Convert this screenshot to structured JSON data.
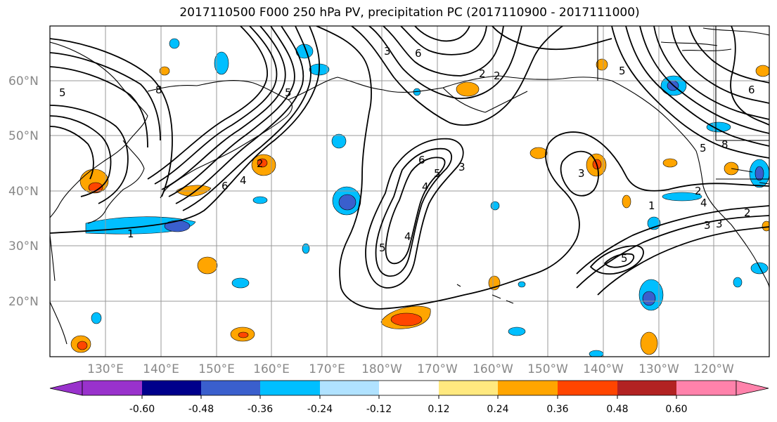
{
  "title": "2017110500 F000 250 hPa PV, precipitation PC (2017110900 - 2017111000)",
  "lat_labels": [
    "60°N",
    "50°N",
    "40°N",
    "30°N",
    "20°N"
  ],
  "lon_labels": [
    "130°E",
    "140°E",
    "150°E",
    "160°E",
    "170°E",
    "180°W",
    "170°W",
    "160°W",
    "150°W",
    "140°W",
    "130°W",
    "120°W"
  ],
  "colorbar": {
    "colors": [
      "#9932cc",
      "#00008b",
      "#3a5fcd",
      "#00bfff",
      "#b0e2ff",
      "#ffffff",
      "#ffe97f",
      "#ffa500",
      "#ff4500",
      "#b22222",
      "#ff82ab"
    ],
    "tick_labels": [
      "-0.60",
      "-0.48",
      "-0.36",
      "-0.24",
      "-0.12",
      "0.12",
      "0.24",
      "0.36",
      "0.48",
      "0.60"
    ]
  },
  "contour_labels": [
    "5",
    "5",
    "8",
    "3",
    "2",
    "1",
    "6",
    "4",
    "2",
    "6",
    "2",
    "3",
    "6",
    "5",
    "4",
    "5",
    "4",
    "3",
    "2",
    "3",
    "1",
    "2",
    "4",
    "3",
    "5",
    "5",
    "8",
    "5",
    "6"
  ]
}
